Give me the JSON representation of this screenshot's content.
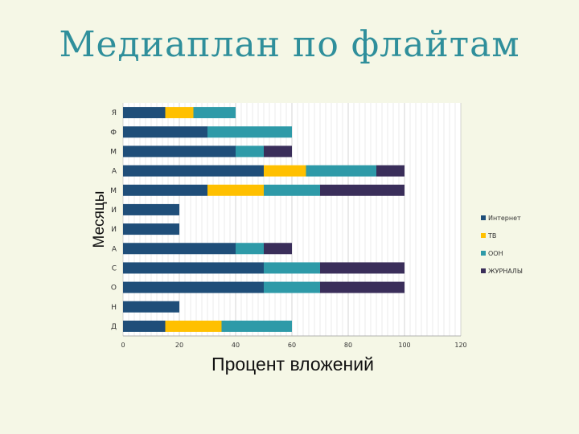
{
  "slide": {
    "title": "Медиаплан по флайтам"
  },
  "chart_data": {
    "type": "bar",
    "orientation": "horizontal",
    "stacked": true,
    "categories": [
      "Я",
      "Ф",
      "М",
      "А",
      "М",
      "И",
      "И",
      "А",
      "С",
      "О",
      "Н",
      "Д"
    ],
    "series": [
      {
        "name": "Интернет",
        "color": "#1f4e79",
        "values": [
          15,
          30,
          40,
          50,
          30,
          20,
          20,
          40,
          50,
          50,
          20,
          15
        ]
      },
      {
        "name": "ТВ",
        "color": "#ffc000",
        "values": [
          10,
          0,
          0,
          15,
          20,
          0,
          0,
          0,
          0,
          0,
          0,
          20
        ]
      },
      {
        "name": "OOH",
        "color": "#2e9aa8",
        "values": [
          15,
          30,
          10,
          25,
          20,
          0,
          0,
          10,
          20,
          20,
          0,
          25
        ]
      },
      {
        "name": "ЖУРНАЛЫ",
        "color": "#3a2e5a",
        "values": [
          0,
          0,
          10,
          10,
          30,
          0,
          0,
          10,
          30,
          30,
          0,
          0
        ]
      }
    ],
    "xlabel": "Процент вложений",
    "ylabel": "Месяцы",
    "xlim": [
      0,
      120
    ],
    "xticks": [
      0,
      20,
      40,
      60,
      80,
      100,
      120
    ],
    "grid": true,
    "legend": "right"
  }
}
